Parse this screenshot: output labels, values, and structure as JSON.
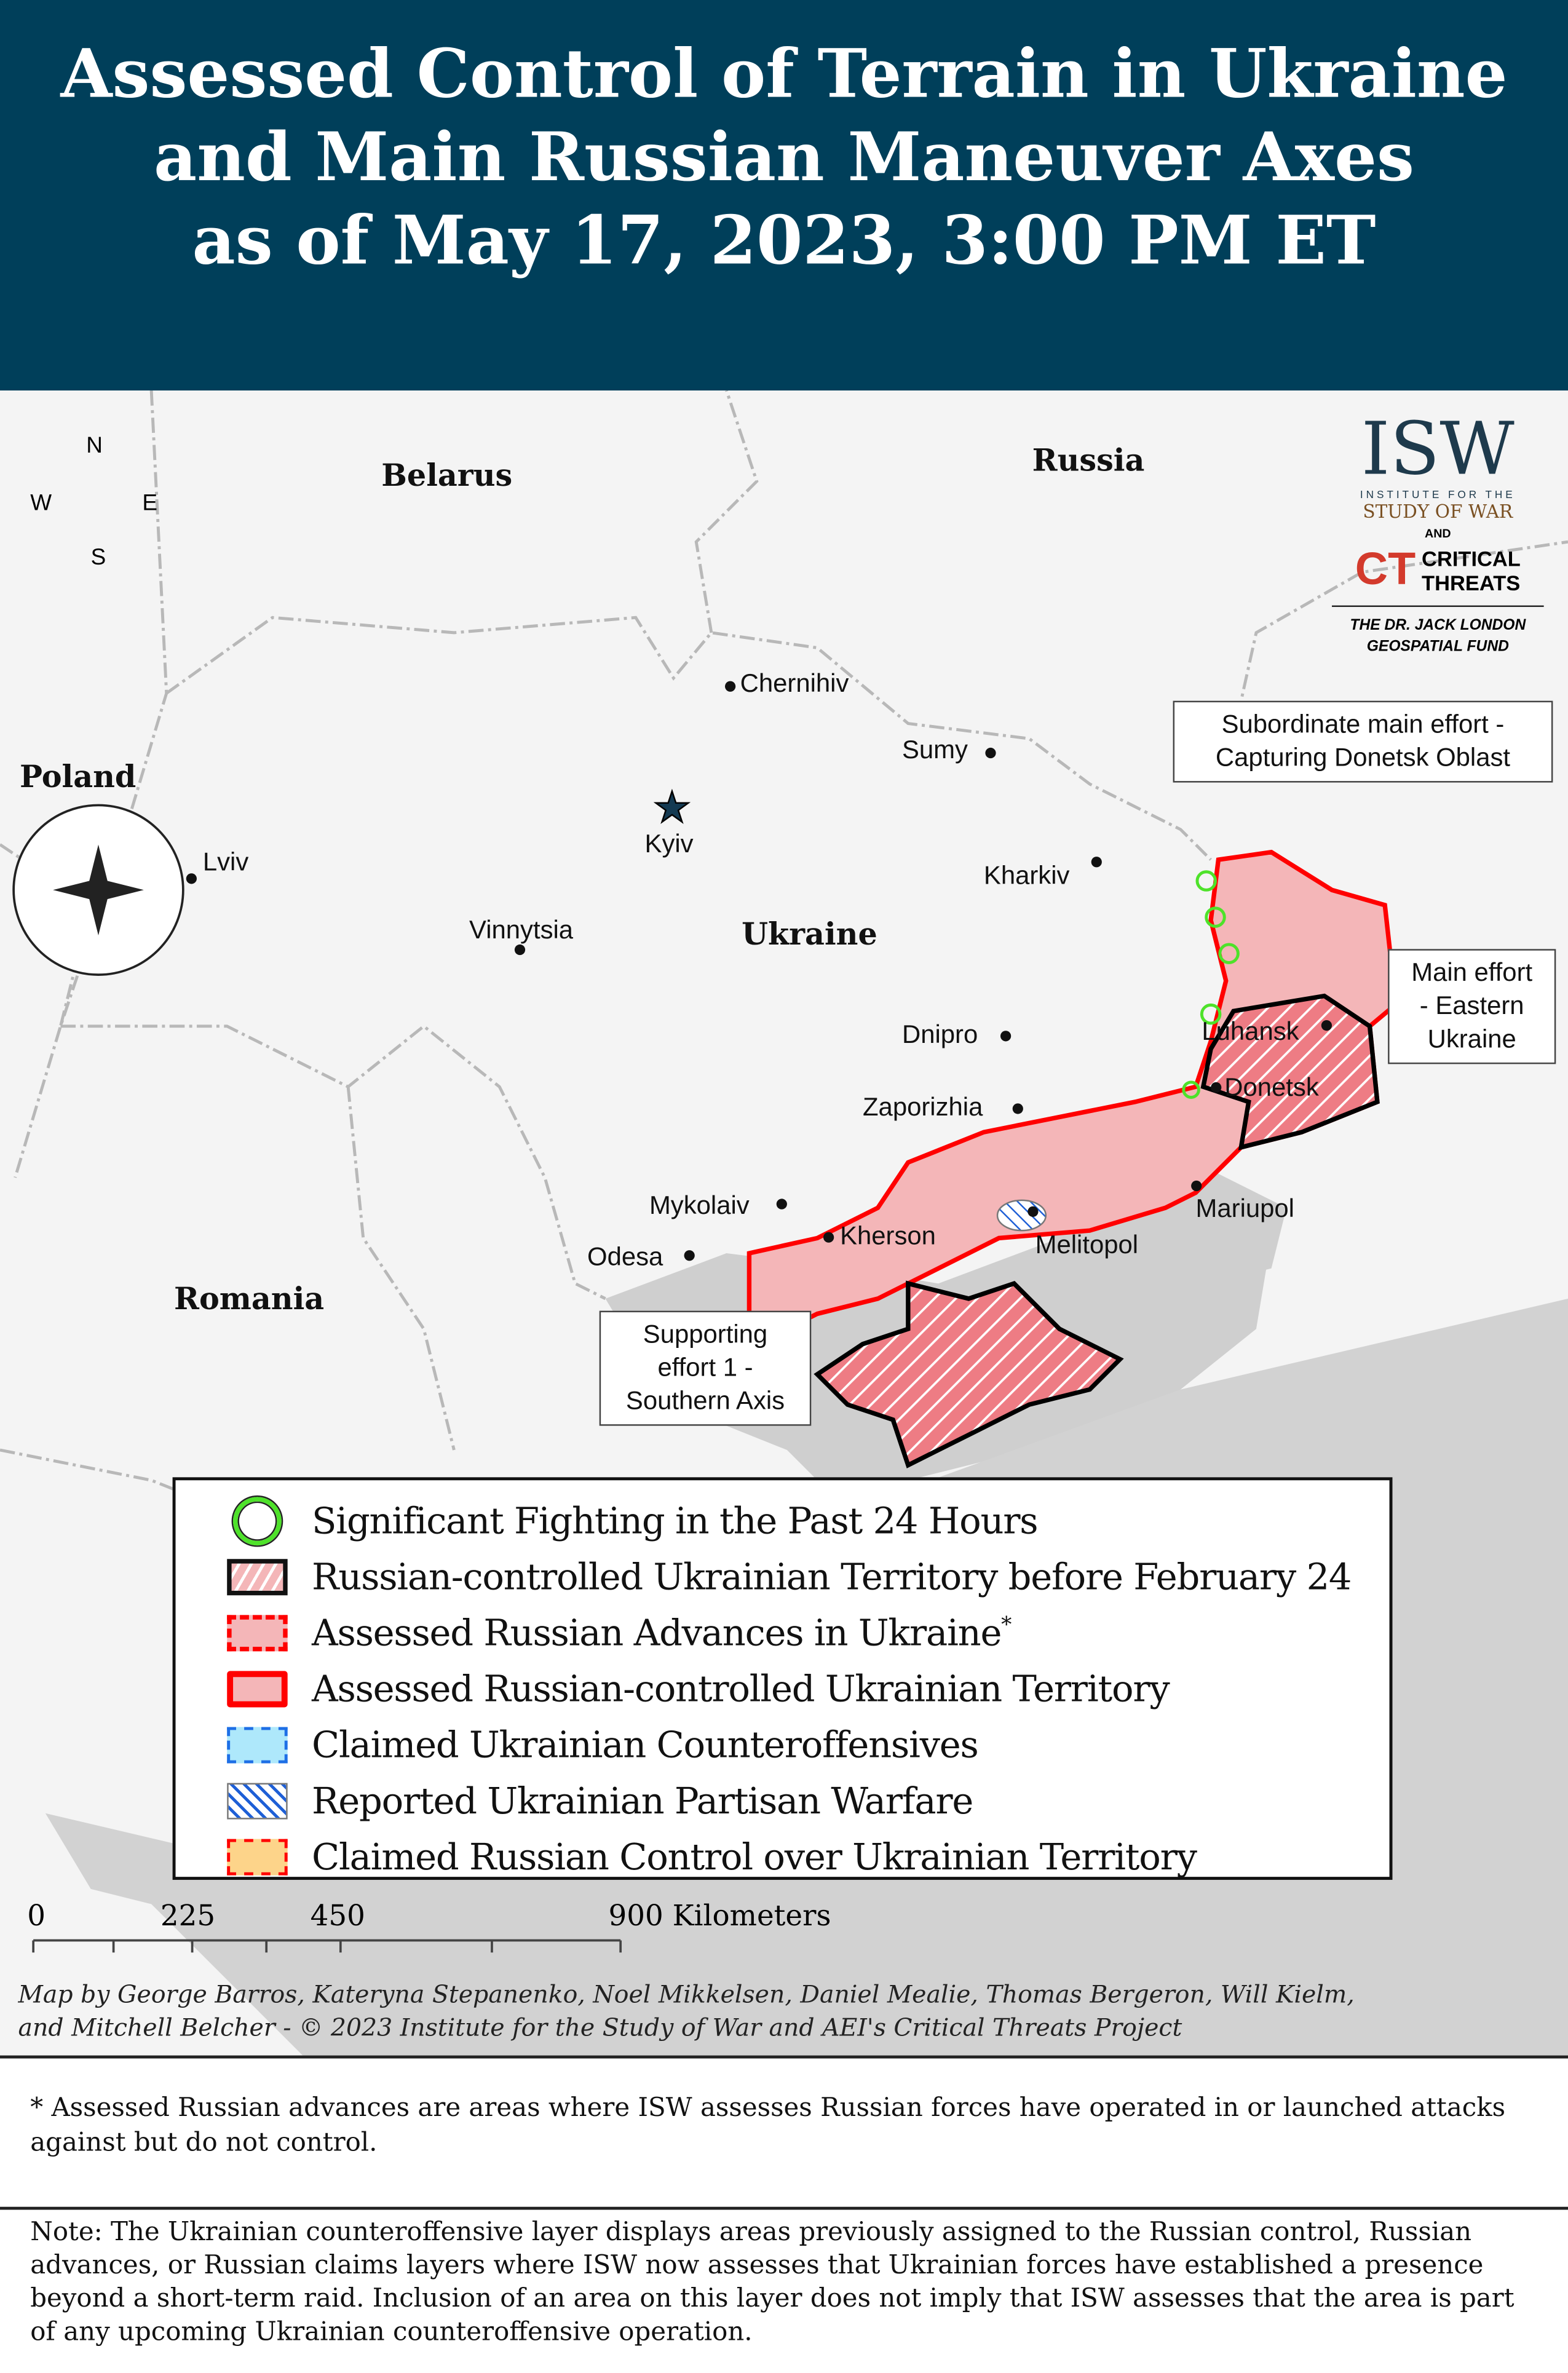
{
  "title_lines": [
    "Assessed Control of Terrain in Ukraine",
    "and Main Russian Maneuver Axes",
    "as of May 17, 2023, 3:00 PM ET"
  ],
  "compass": {
    "n": "N",
    "s": "S",
    "e": "E",
    "w": "W"
  },
  "logo": {
    "isw": "ISW",
    "isw_sub1": "INSTITUTE FOR THE",
    "isw_sub2": "STUDY OF WAR",
    "and": "AND",
    "ct1": "CRITICAL",
    "ct2": "THREATS",
    "fund1": "THE DR. JACK LONDON",
    "fund2": "GEOSPATIAL FUND"
  },
  "countries": {
    "belarus": "Belarus",
    "russia": "Russia",
    "poland": "Poland",
    "romania": "Romania",
    "ukraine": "Ukraine"
  },
  "cities": {
    "chernihiv": "Chernihiv",
    "sumy": "Sumy",
    "kyiv": "Kyiv",
    "kharkiv": "Kharkiv",
    "lviv": "Lviv",
    "vinnytsia": "Vinnytsia",
    "dnipro": "Dnipro",
    "zaporizhzhia": "Zaporizhia",
    "mykolaiv": "Mykolaiv",
    "kherson": "Kherson",
    "odesa": "Odesa",
    "melitopol": "Melitopol",
    "mariupol": "Mariupol",
    "luhansk": "Luhansk",
    "donetsk": "Donetsk"
  },
  "callouts": {
    "subordinate": [
      "Subordinate main effort -",
      "Capturing Donetsk Oblast"
    ],
    "main": [
      "Main effort",
      "- Eastern",
      "Ukraine"
    ],
    "supporting": [
      "Supporting",
      "effort 1 -",
      "Southern Axis"
    ]
  },
  "legend": [
    {
      "label": "Significant Fighting in the Past 24 Hours",
      "sup": ""
    },
    {
      "label": "Russian-controlled Ukrainian Territory before February 24",
      "sup": ""
    },
    {
      "label": "Assessed Russian Advances in Ukraine",
      "sup": "*"
    },
    {
      "label": "Assessed Russian-controlled Ukrainian Territory",
      "sup": ""
    },
    {
      "label": "Claimed Ukrainian Counteroffensives",
      "sup": ""
    },
    {
      "label": "Reported Ukrainian Partisan Warfare",
      "sup": ""
    },
    {
      "label": "Claimed Russian Control over Ukrainian Territory",
      "sup": ""
    }
  ],
  "colors": {
    "header": "#003f5a",
    "russian_fill": "#f4b6b8",
    "russian_border": "#ff0000",
    "fighting": "#4ee22a",
    "counteroffensive": "#aee8fb",
    "partisan": "#1e5fd6",
    "claimed": "#fdd48a"
  },
  "scale": {
    "ticks": [
      "0",
      "225",
      "450",
      "900 Kilometers"
    ]
  },
  "credits": [
    "Map by George Barros, Kateryna Stepanenko, Noel Mikkelsen, Daniel Mealie, Thomas Bergeron, Will Kielm,",
    "and Mitchell Belcher - © 2023 Institute for the Study of War and AEI's Critical Threats Project"
  ],
  "note1": "* Assessed Russian advances are areas where ISW assesses Russian forces have operated in or launched attacks against but do not control.",
  "note2": "Note: The Ukrainian counteroffensive layer displays areas previously assigned to the Russian control, Russian advances, or Russian claims layers where ISW now assesses that Ukrainian forces have established a presence beyond a short-term raid. Inclusion of an area on this layer does not imply that ISW assesses that the area is part of any upcoming Ukrainian counteroffensive operation."
}
